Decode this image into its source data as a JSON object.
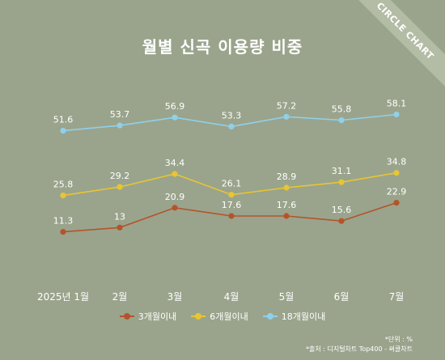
{
  "ribbon_text": "CIRCLE CHART",
  "chart_data": {
    "type": "line",
    "title": "월별 신곡 이용량 비중",
    "categories": [
      "2025년 1월",
      "2월",
      "3월",
      "4월",
      "5월",
      "6월",
      "7월"
    ],
    "series": [
      {
        "name": "18개월이내",
        "color": "#8fd0ea",
        "values": [
          51.6,
          53.7,
          56.9,
          53.3,
          57.2,
          55.8,
          58.1
        ],
        "labels": [
          "51.6",
          "53.7",
          "56.9",
          "53.3",
          "57.2",
          "55.8",
          "58.1"
        ]
      },
      {
        "name": "6개월이내",
        "color": "#e8c532",
        "values": [
          25.8,
          29.2,
          34.4,
          26.1,
          28.9,
          31.1,
          34.8
        ],
        "labels": [
          "25.8",
          "29.2",
          "34.4",
          "26.1",
          "28.9",
          "31.1",
          "34.8"
        ]
      },
      {
        "name": "3개월이내",
        "color": "#b5532a",
        "values": [
          11.3,
          13,
          20.9,
          17.6,
          17.6,
          15.6,
          22.9
        ],
        "labels": [
          "11.3",
          "13",
          "20.9",
          "17.6",
          "17.6",
          "15.6",
          "22.9"
        ]
      }
    ],
    "legend_order": [
      "3개월이내",
      "6개월이내",
      "18개월이내"
    ],
    "legend_position": "bottom",
    "grid": false
  },
  "notes": {
    "unit": "*단위 : %",
    "source": "*출처 : 디지털차트 Top400 - 써클차트"
  }
}
